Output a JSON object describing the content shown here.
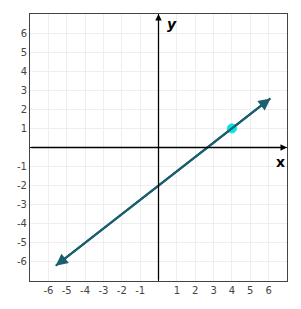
{
  "chart_data": {
    "type": "line",
    "x_label": "x",
    "y_label": "y",
    "xlim": [
      -7,
      7
    ],
    "ylim": [
      -7,
      7
    ],
    "xticks": [
      -6,
      -5,
      -4,
      -3,
      -2,
      -1,
      1,
      2,
      3,
      4,
      5,
      6
    ],
    "yticks": [
      -6,
      -5,
      -4,
      -3,
      -2,
      -1,
      1,
      2,
      3,
      4,
      5,
      6
    ],
    "grid": true,
    "series": [
      {
        "type": "line",
        "x": [
          -5.6,
          6.1
        ],
        "values": [
          -6.2,
          2.575
        ],
        "color": "#1a5f6e",
        "marker": "arrow"
      },
      {
        "type": "scatter",
        "x": [
          4
        ],
        "values": [
          1
        ],
        "color": "#00e5e5",
        "marker": "circle"
      }
    ]
  }
}
